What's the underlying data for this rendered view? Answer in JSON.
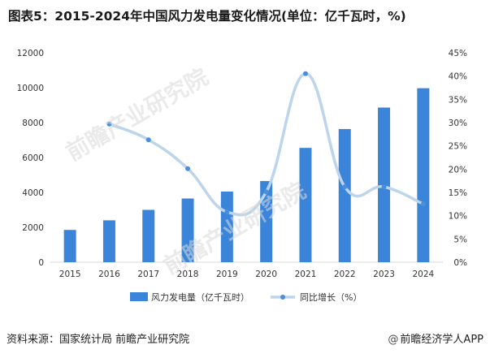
{
  "title": "图表5：2015-2024年中国风力发电量变化情况(单位：亿千瓦时，%)",
  "watermarks": [
    "前瞻产业研究院",
    "前瞻产业研究院"
  ],
  "footer": {
    "source": "资料来源：国家统计局 前瞻产业研究院",
    "brand": "前瞻经济学人APP",
    "brand_symbol": "@"
  },
  "colors": {
    "bar": "#3a85d9",
    "line": "#bcd5ec",
    "marker": "#4a8fdc",
    "axis_text": "#333333",
    "axis_line": "#d9d9d9"
  },
  "chart_data": {
    "type": "bar",
    "title": "图表5：2015-2024年中国风力发电量变化情况(单位：亿千瓦时，%)",
    "categories": [
      "2015",
      "2016",
      "2017",
      "2018",
      "2019",
      "2020",
      "2021",
      "2022",
      "2023",
      "2024"
    ],
    "series": [
      {
        "name": "风力发电量（亿千瓦时）",
        "type": "bar",
        "axis": "left",
        "values": [
          1850,
          2400,
          3000,
          3650,
          4050,
          4650,
          6550,
          7630,
          8860,
          9970
        ]
      },
      {
        "name": "同比增长（%）",
        "type": "line",
        "smooth": true,
        "axis": "right",
        "values": [
          null,
          29.7,
          26.3,
          20.1,
          10.8,
          15.1,
          40.5,
          16.2,
          16.2,
          12.5
        ]
      }
    ],
    "y_left": {
      "min": 0,
      "max": 12000,
      "ticks": [
        "0",
        "2000",
        "4000",
        "6000",
        "8000",
        "10000",
        "12000"
      ]
    },
    "y_right": {
      "min": 0,
      "max": 45,
      "ticks": [
        "0%",
        "5%",
        "10%",
        "15%",
        "20%",
        "25%",
        "30%",
        "35%",
        "40%",
        "45%"
      ]
    },
    "grid": false,
    "legend_position": "bottom"
  }
}
